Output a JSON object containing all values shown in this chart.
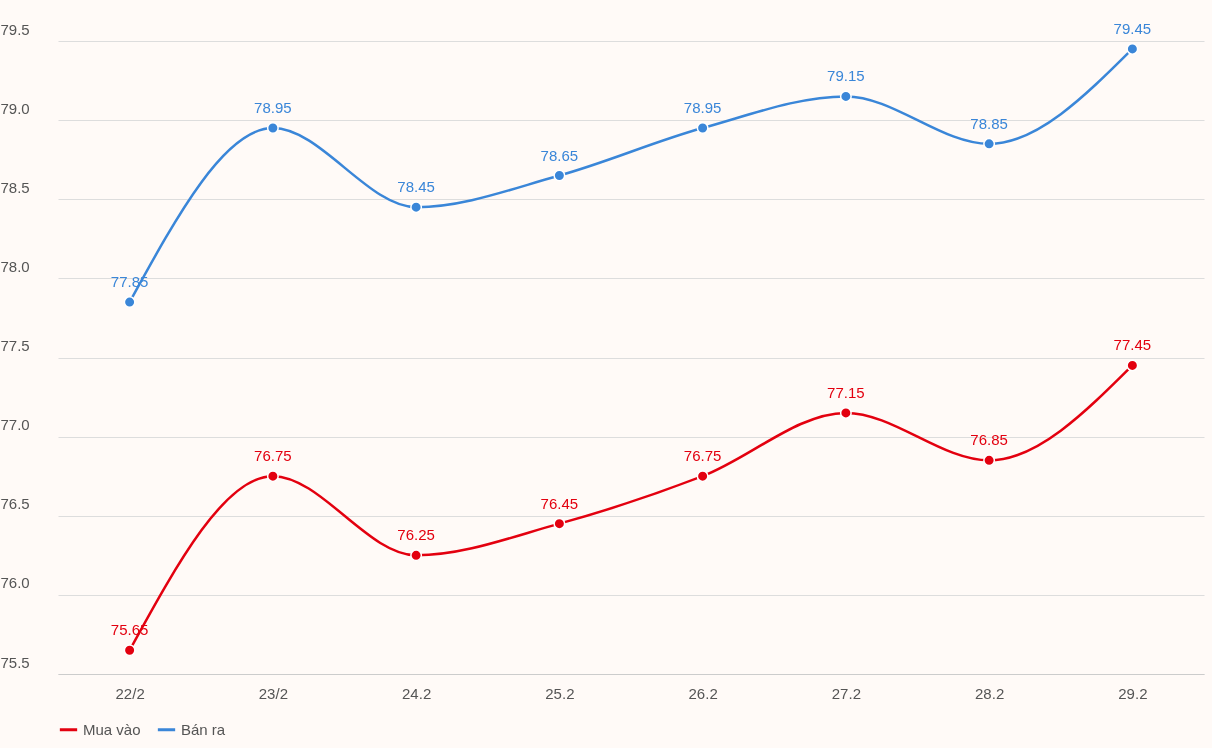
{
  "chart_data": {
    "type": "line",
    "categories": [
      "22/2",
      "23/2",
      "24.2",
      "25.2",
      "26.2",
      "27.2",
      "28.2",
      "29.2"
    ],
    "series": [
      {
        "name": "Mua vào",
        "color": "#e3000f",
        "values": [
          75.65,
          76.75,
          76.25,
          76.45,
          76.75,
          77.15,
          76.85,
          77.45
        ]
      },
      {
        "name": "Bán ra",
        "color": "#3a86d8",
        "values": [
          77.85,
          78.95,
          78.45,
          78.65,
          78.95,
          79.15,
          78.85,
          79.45
        ]
      }
    ],
    "ylim": [
      75.5,
      79.5
    ],
    "yticks": [
      {
        "value": 75.5,
        "label": "75.5"
      },
      {
        "value": 76,
        "label": "76.0"
      },
      {
        "value": 76.5,
        "label": "76.5"
      },
      {
        "value": 77,
        "label": "77.0"
      },
      {
        "value": 77.5,
        "label": "77.5"
      },
      {
        "value": 78,
        "label": "78.0"
      },
      {
        "value": 78.5,
        "label": "78.5"
      },
      {
        "value": 79,
        "label": "79.0"
      },
      {
        "value": 79.5,
        "label": "79.5"
      }
    ],
    "grid": "y",
    "legend": "bottom",
    "marker": "circle",
    "line_style": "solid",
    "data_labels": true
  }
}
